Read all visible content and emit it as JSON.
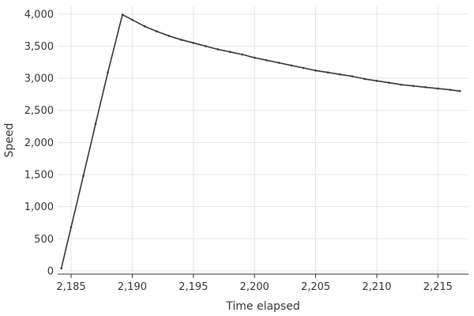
{
  "chart_data": {
    "type": "line",
    "title": "",
    "xlabel": "Time elapsed",
    "ylabel": "Speed",
    "xlim": [
      2183.9,
      2217.5
    ],
    "ylim": [
      -50,
      4120
    ],
    "x_ticks": [
      2185,
      2190,
      2195,
      2200,
      2205,
      2210,
      2215
    ],
    "x_tick_labels": [
      "2,185",
      "2,190",
      "2,195",
      "2,200",
      "2,205",
      "2,210",
      "2,215"
    ],
    "y_ticks": [
      0,
      500,
      1000,
      1500,
      2000,
      2500,
      3000,
      3500,
      4000
    ],
    "y_tick_labels": [
      "0",
      "500",
      "1,000",
      "1,500",
      "2,000",
      "2,500",
      "3,000",
      "3,500",
      "4,000"
    ],
    "grid": true,
    "series": [
      {
        "color": "#333333",
        "x": [
          2184.2,
          2185.0,
          2186.0,
          2187.0,
          2188.0,
          2189.2,
          2190.0,
          2191.0,
          2192.0,
          2193.0,
          2194.0,
          2195.0,
          2196.0,
          2197.0,
          2198.0,
          2199.0,
          2200.0,
          2201.0,
          2202.0,
          2203.0,
          2204.0,
          2205.0,
          2206.0,
          2207.0,
          2208.0,
          2209.0,
          2210.0,
          2211.0,
          2212.0,
          2213.0,
          2214.0,
          2215.0,
          2216.0,
          2216.8
        ],
        "y": [
          40,
          680,
          1480,
          2290,
          3090,
          3990,
          3910,
          3810,
          3730,
          3660,
          3600,
          3550,
          3500,
          3450,
          3410,
          3370,
          3320,
          3280,
          3240,
          3200,
          3160,
          3120,
          3090,
          3060,
          3030,
          2990,
          2960,
          2930,
          2900,
          2880,
          2860,
          2840,
          2820,
          2800
        ]
      }
    ]
  }
}
